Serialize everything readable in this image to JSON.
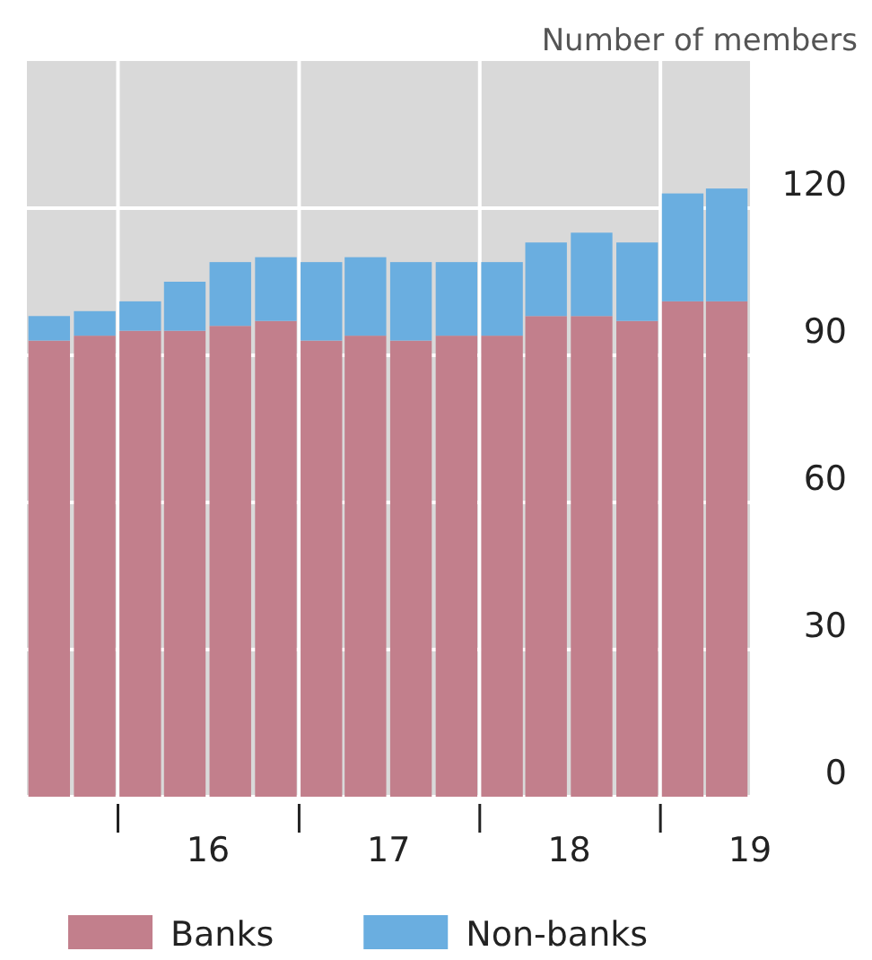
{
  "chart_data": {
    "type": "bar",
    "stacked": true,
    "ylabel": "Number of members",
    "x": [
      "2015-08-15",
      "2015-11-15",
      "2016-02-15",
      "2016-05-15",
      "2016-08-15",
      "2016-11-15",
      "2017-02-15",
      "2017-05-15",
      "2017-08-15",
      "2017-11-15",
      "2018-02-15",
      "2018-05-15",
      "2018-08-15",
      "2018-11-15",
      "2019-02-15",
      "2019-05-15"
    ],
    "series": [
      {
        "name": "Banks",
        "color": "#c27f8c",
        "values": [
          93,
          94,
          95,
          95,
          96,
          97,
          93,
          94,
          93,
          94,
          94,
          98,
          98,
          97,
          101,
          101
        ]
      },
      {
        "name": "Non-banks",
        "color": "#6aaee0",
        "values": [
          5,
          5,
          6,
          10,
          13,
          13,
          16,
          16,
          16,
          15,
          15,
          15,
          17,
          16,
          22,
          23
        ]
      }
    ],
    "xlim": [
      "2015-07-01",
      "2019-07-01"
    ],
    "xticks": [
      {
        "value": "2016-01-01",
        "label": null
      },
      {
        "value": "2016-07-01",
        "label": "16"
      },
      {
        "value": "2017-01-01",
        "label": null
      },
      {
        "value": "2017-07-01",
        "label": "17"
      },
      {
        "value": "2018-01-01",
        "label": null
      },
      {
        "value": "2018-07-01",
        "label": "18"
      },
      {
        "value": "2019-01-01",
        "label": null
      },
      {
        "value": "2019-07-01",
        "label": "19"
      }
    ],
    "ylim": [
      0,
      150
    ],
    "yticks": [
      0,
      30,
      60,
      90,
      120
    ],
    "grid": true,
    "legend": "bottom"
  }
}
